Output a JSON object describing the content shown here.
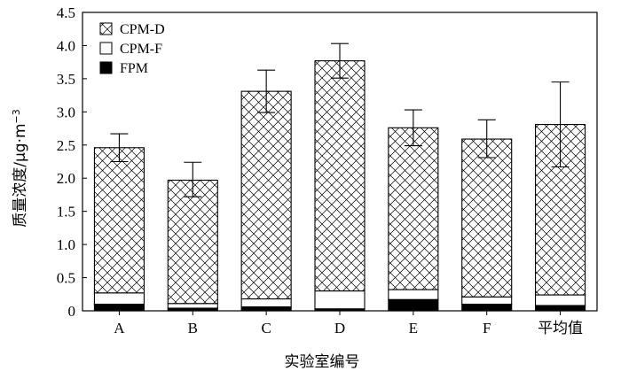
{
  "chart_data": {
    "type": "bar",
    "stacked": true,
    "categories": [
      "A",
      "B",
      "C",
      "D",
      "E",
      "F",
      "平均值"
    ],
    "series": [
      {
        "name": "FPM",
        "values": [
          0.1,
          0.04,
          0.06,
          0.03,
          0.17,
          0.1,
          0.08
        ],
        "fill": "solid-black"
      },
      {
        "name": "CPM-F",
        "values": [
          0.17,
          0.07,
          0.12,
          0.27,
          0.15,
          0.11,
          0.16
        ],
        "fill": "white"
      },
      {
        "name": "CPM-D",
        "values": [
          2.19,
          1.86,
          3.13,
          3.47,
          2.44,
          2.38,
          2.57
        ],
        "fill": "crosshatch"
      }
    ],
    "totals": [
      2.46,
      1.97,
      3.31,
      3.77,
      2.76,
      2.59,
      2.81
    ],
    "error_bars": {
      "upper": [
        2.67,
        2.24,
        3.63,
        4.03,
        3.03,
        2.88,
        3.45
      ],
      "lower": [
        2.25,
        1.72,
        2.99,
        3.51,
        2.49,
        2.31,
        2.17
      ]
    },
    "ylim": [
      0,
      4.5
    ],
    "yticks": [
      "0",
      "0.5",
      "1.0",
      "1.5",
      "2.0",
      "2.5",
      "3.0",
      "3.5",
      "4.0",
      "4.5"
    ],
    "ylabel": "质量浓度/μg·m",
    "ylabel_superscript": "−3",
    "xlabel": "实验室编号",
    "legend": {
      "position": "top-left",
      "order": [
        "CPM-D",
        "CPM-F",
        "FPM"
      ]
    },
    "colors": {
      "ink": "#000000",
      "background": "#ffffff"
    }
  }
}
